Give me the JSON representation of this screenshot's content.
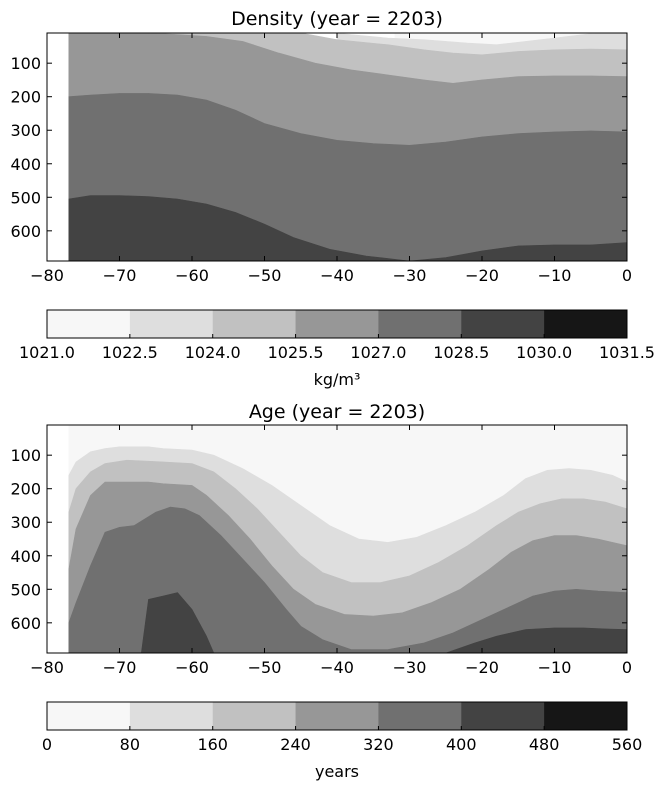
{
  "chart_data": [
    {
      "type": "heatmap",
      "subtype": "filled-contour",
      "title": "Density  (year = 2203)",
      "xlim": [
        -80,
        0
      ],
      "x_ticks": [
        -80,
        -70,
        -60,
        -50,
        -40,
        -30,
        -20,
        -10,
        0
      ],
      "ylim": [
        690,
        10
      ],
      "y_inverted": true,
      "y_ticks": [
        100,
        200,
        300,
        400,
        500,
        600
      ],
      "grid": false,
      "no_data_region": "x < -77",
      "colorbar": {
        "orientation": "horizontal",
        "position": "below",
        "label": "kg/m³",
        "levels": [
          1021.0,
          1022.5,
          1024.0,
          1025.5,
          1027.0,
          1028.5,
          1030.0,
          1031.5
        ],
        "tick_labels": [
          "1021.0",
          "1022.5",
          "1024.0",
          "1025.5",
          "1027.0",
          "1028.5",
          "1030.0",
          "1031.5"
        ],
        "colors": [
          "#f7f7f7",
          "#dedede",
          "#c1c1c1",
          "#979797",
          "#707070",
          "#434343",
          "#161616"
        ]
      },
      "regions": [
        {
          "level": 0,
          "lower": [
            [
              -32,
              10
            ],
            [
              -25,
              8
            ],
            [
              0,
              8
            ],
            [
              0,
              10
            ]
          ]
        },
        {
          "level": 1,
          "lower": [
            [
              -40,
              10
            ],
            [
              -38,
              15
            ],
            [
              -33,
              25
            ],
            [
              -28,
              30
            ],
            [
              -22,
              40
            ],
            [
              -18,
              45
            ],
            [
              -14,
              35
            ],
            [
              -10,
              25
            ],
            [
              -5,
              12
            ],
            [
              0,
              8
            ]
          ]
        },
        {
          "level": 2,
          "lower": [
            [
              -77,
              10
            ],
            [
              -70,
              5
            ],
            [
              -60,
              8
            ],
            [
              -50,
              5
            ],
            [
              -45,
              10
            ],
            [
              -40,
              30
            ],
            [
              -33,
              45
            ],
            [
              -28,
              60
            ],
            [
              -24,
              70
            ],
            [
              -20,
              75
            ],
            [
              -15,
              65
            ],
            [
              -10,
              60
            ],
            [
              -5,
              58
            ],
            [
              0,
              60
            ]
          ]
        },
        {
          "level": 3,
          "lower": [
            [
              -77,
              10
            ],
            [
              -70,
              8
            ],
            [
              -64,
              12
            ],
            [
              -58,
              20
            ],
            [
              -53,
              35
            ],
            [
              -48,
              70
            ],
            [
              -43,
              100
            ],
            [
              -38,
              120
            ],
            [
              -33,
              135
            ],
            [
              -28,
              150
            ],
            [
              -24,
              160
            ],
            [
              -20,
              150
            ],
            [
              -15,
              140
            ],
            [
              -10,
              138
            ],
            [
              -5,
              138
            ],
            [
              0,
              140
            ]
          ]
        },
        {
          "level": 4,
          "lower": [
            [
              -77,
              200
            ],
            [
              -74,
              195
            ],
            [
              -70,
              190
            ],
            [
              -66,
              190
            ],
            [
              -62,
              195
            ],
            [
              -58,
              210
            ],
            [
              -54,
              240
            ],
            [
              -50,
              280
            ],
            [
              -45,
              310
            ],
            [
              -40,
              330
            ],
            [
              -35,
              340
            ],
            [
              -30,
              345
            ],
            [
              -25,
              335
            ],
            [
              -20,
              320
            ],
            [
              -15,
              310
            ],
            [
              -10,
              305
            ],
            [
              -5,
              302
            ],
            [
              0,
              305
            ]
          ]
        },
        {
          "level": 5,
          "lower": [
            [
              -77,
              505
            ],
            [
              -74,
              495
            ],
            [
              -70,
              495
            ],
            [
              -66,
              498
            ],
            [
              -62,
              505
            ],
            [
              -58,
              520
            ],
            [
              -54,
              545
            ],
            [
              -50,
              580
            ],
            [
              -46,
              620
            ],
            [
              -41,
              655
            ],
            [
              -36,
              675
            ],
            [
              -30,
              690
            ],
            [
              -25,
              680
            ],
            [
              -20,
              660
            ],
            [
              -15,
              645
            ],
            [
              -10,
              642
            ],
            [
              -5,
              642
            ],
            [
              0,
              635
            ]
          ]
        },
        {
          "level": 6,
          "lower": [
            [
              -77,
              690
            ],
            [
              0,
              690
            ]
          ]
        }
      ]
    },
    {
      "type": "heatmap",
      "subtype": "filled-contour",
      "title": "Age  (year = 2203)",
      "xlim": [
        -80,
        0
      ],
      "x_ticks": [
        -80,
        -70,
        -60,
        -50,
        -40,
        -30,
        -20,
        -10,
        0
      ],
      "ylim": [
        690,
        10
      ],
      "y_inverted": true,
      "y_ticks": [
        100,
        200,
        300,
        400,
        500,
        600
      ],
      "grid": false,
      "no_data_region": "x < -77",
      "colorbar": {
        "orientation": "horizontal",
        "position": "below",
        "label": "years",
        "levels": [
          0,
          80,
          160,
          240,
          320,
          400,
          480,
          560
        ],
        "tick_labels": [
          "0",
          "80",
          "160",
          "240",
          "320",
          "400",
          "480",
          "560"
        ],
        "colors": [
          "#f7f7f7",
          "#dedede",
          "#c1c1c1",
          "#979797",
          "#707070",
          "#434343",
          "#161616"
        ]
      },
      "regions": [
        {
          "level": 0,
          "lower": [
            [
              -77,
              10
            ],
            [
              0,
              10
            ]
          ]
        },
        {
          "level": 1,
          "lower": [
            [
              -77,
              160
            ],
            [
              -76,
              120
            ],
            [
              -74,
              90
            ],
            [
              -72,
              80
            ],
            [
              -70,
              75
            ],
            [
              -66,
              75
            ],
            [
              -64,
              80
            ],
            [
              -60,
              85
            ],
            [
              -57,
              100
            ],
            [
              -53,
              140
            ],
            [
              -49,
              190
            ],
            [
              -45,
              250
            ],
            [
              -41,
              310
            ],
            [
              -37,
              350
            ],
            [
              -33,
              360
            ],
            [
              -29,
              345
            ],
            [
              -25,
              310
            ],
            [
              -21,
              270
            ],
            [
              -17,
              220
            ],
            [
              -14,
              170
            ],
            [
              -11,
              145
            ],
            [
              -8,
              140
            ],
            [
              -5,
              145
            ],
            [
              -2,
              160
            ],
            [
              0,
              180
            ]
          ]
        },
        {
          "level": 2,
          "lower": [
            [
              -77,
              270
            ],
            [
              -76,
              200
            ],
            [
              -74,
              150
            ],
            [
              -72,
              125
            ],
            [
              -69,
              115
            ],
            [
              -66,
              118
            ],
            [
              -64,
              120
            ],
            [
              -60,
              125
            ],
            [
              -57,
              150
            ],
            [
              -54,
              200
            ],
            [
              -51,
              260
            ],
            [
              -48,
              330
            ],
            [
              -45,
              400
            ],
            [
              -42,
              450
            ],
            [
              -38,
              480
            ],
            [
              -34,
              480
            ],
            [
              -30,
              460
            ],
            [
              -26,
              420
            ],
            [
              -22,
              370
            ],
            [
              -18,
              310
            ],
            [
              -15,
              270
            ],
            [
              -12,
              245
            ],
            [
              -9,
              230
            ],
            [
              -6,
              230
            ],
            [
              -3,
              240
            ],
            [
              0,
              260
            ]
          ]
        },
        {
          "level": 3,
          "lower": [
            [
              -77,
              440
            ],
            [
              -76,
              320
            ],
            [
              -74,
              220
            ],
            [
              -72,
              180
            ],
            [
              -69,
              180
            ],
            [
              -66,
              180
            ],
            [
              -64,
              185
            ],
            [
              -60,
              190
            ],
            [
              -58,
              220
            ],
            [
              -55,
              280
            ],
            [
              -52,
              350
            ],
            [
              -49,
              430
            ],
            [
              -46,
              500
            ],
            [
              -43,
              545
            ],
            [
              -39,
              575
            ],
            [
              -35,
              580
            ],
            [
              -31,
              570
            ],
            [
              -27,
              540
            ],
            [
              -23,
              500
            ],
            [
              -19,
              440
            ],
            [
              -16,
              390
            ],
            [
              -13,
              355
            ],
            [
              -10,
              340
            ],
            [
              -7,
              340
            ],
            [
              -4,
              350
            ],
            [
              0,
              370
            ]
          ]
        },
        {
          "level": 4,
          "lower": [
            [
              -77,
              600
            ],
            [
              -76,
              540
            ],
            [
              -74,
              430
            ],
            [
              -72,
              330
            ],
            [
              -70,
              315
            ],
            [
              -68,
              310
            ],
            [
              -65,
              270
            ],
            [
              -63,
              255
            ],
            [
              -61,
              260
            ],
            [
              -59,
              280
            ],
            [
              -56,
              340
            ],
            [
              -53,
              410
            ],
            [
              -50,
              480
            ],
            [
              -47,
              560
            ],
            [
              -45,
              610
            ],
            [
              -42,
              650
            ],
            [
              -38,
              680
            ],
            [
              -33,
              680
            ],
            [
              -28,
              660
            ],
            [
              -24,
              630
            ],
            [
              -20,
              590
            ],
            [
              -16,
              550
            ],
            [
              -13,
              520
            ],
            [
              -10,
              505
            ],
            [
              -7,
              500
            ],
            [
              -4,
              505
            ],
            [
              0,
              510
            ]
          ]
        },
        {
          "level": 5,
          "lower": [
            [
              -77,
              690
            ],
            [
              -70,
              690
            ],
            [
              -67,
              690
            ],
            [
              -66,
              530
            ],
            [
              -64,
              520
            ],
            [
              -62,
              510
            ],
            [
              -60,
              560
            ],
            [
              -58,
              640
            ],
            [
              -57,
              690
            ],
            [
              -40,
              690
            ],
            [
              -25,
              690
            ],
            [
              -21,
              660
            ],
            [
              -18,
              640
            ],
            [
              -14,
              620
            ],
            [
              -10,
              615
            ],
            [
              -6,
              615
            ],
            [
              -3,
              618
            ],
            [
              0,
              620
            ]
          ]
        },
        {
          "level": 6,
          "lower": [
            [
              -77,
              690
            ],
            [
              0,
              690
            ]
          ]
        }
      ]
    }
  ]
}
